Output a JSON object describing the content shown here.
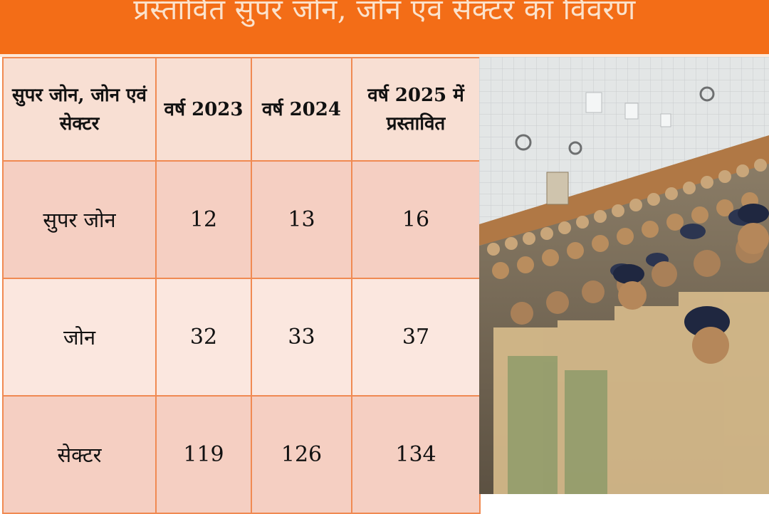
{
  "banner": {
    "title": "प्रस्तावित सुपर जोन, जोन एवं सेक्टर का विवरण",
    "color": "#f36d17"
  },
  "table": {
    "headers": [
      "सुपर जोन, जोन एवं सेक्टर",
      "वर्ष 2023",
      "वर्ष 2024",
      "वर्ष 2025 में प्रस्तावित"
    ],
    "rows": [
      {
        "label": "सुपर जोन",
        "y2023": "12",
        "y2024": "13",
        "y2025": "16"
      },
      {
        "label": "जोन",
        "y2023": "32",
        "y2024": "33",
        "y2025": "37"
      },
      {
        "label": "सेक्टर",
        "y2023": "119",
        "y2024": "126",
        "y2025": "134"
      }
    ],
    "border_color": "#f08a52",
    "row_colors": [
      "#f5cfc2",
      "#fbe7df"
    ]
  },
  "photo": {
    "subject": "uniformed-personnel-in-auditorium"
  }
}
